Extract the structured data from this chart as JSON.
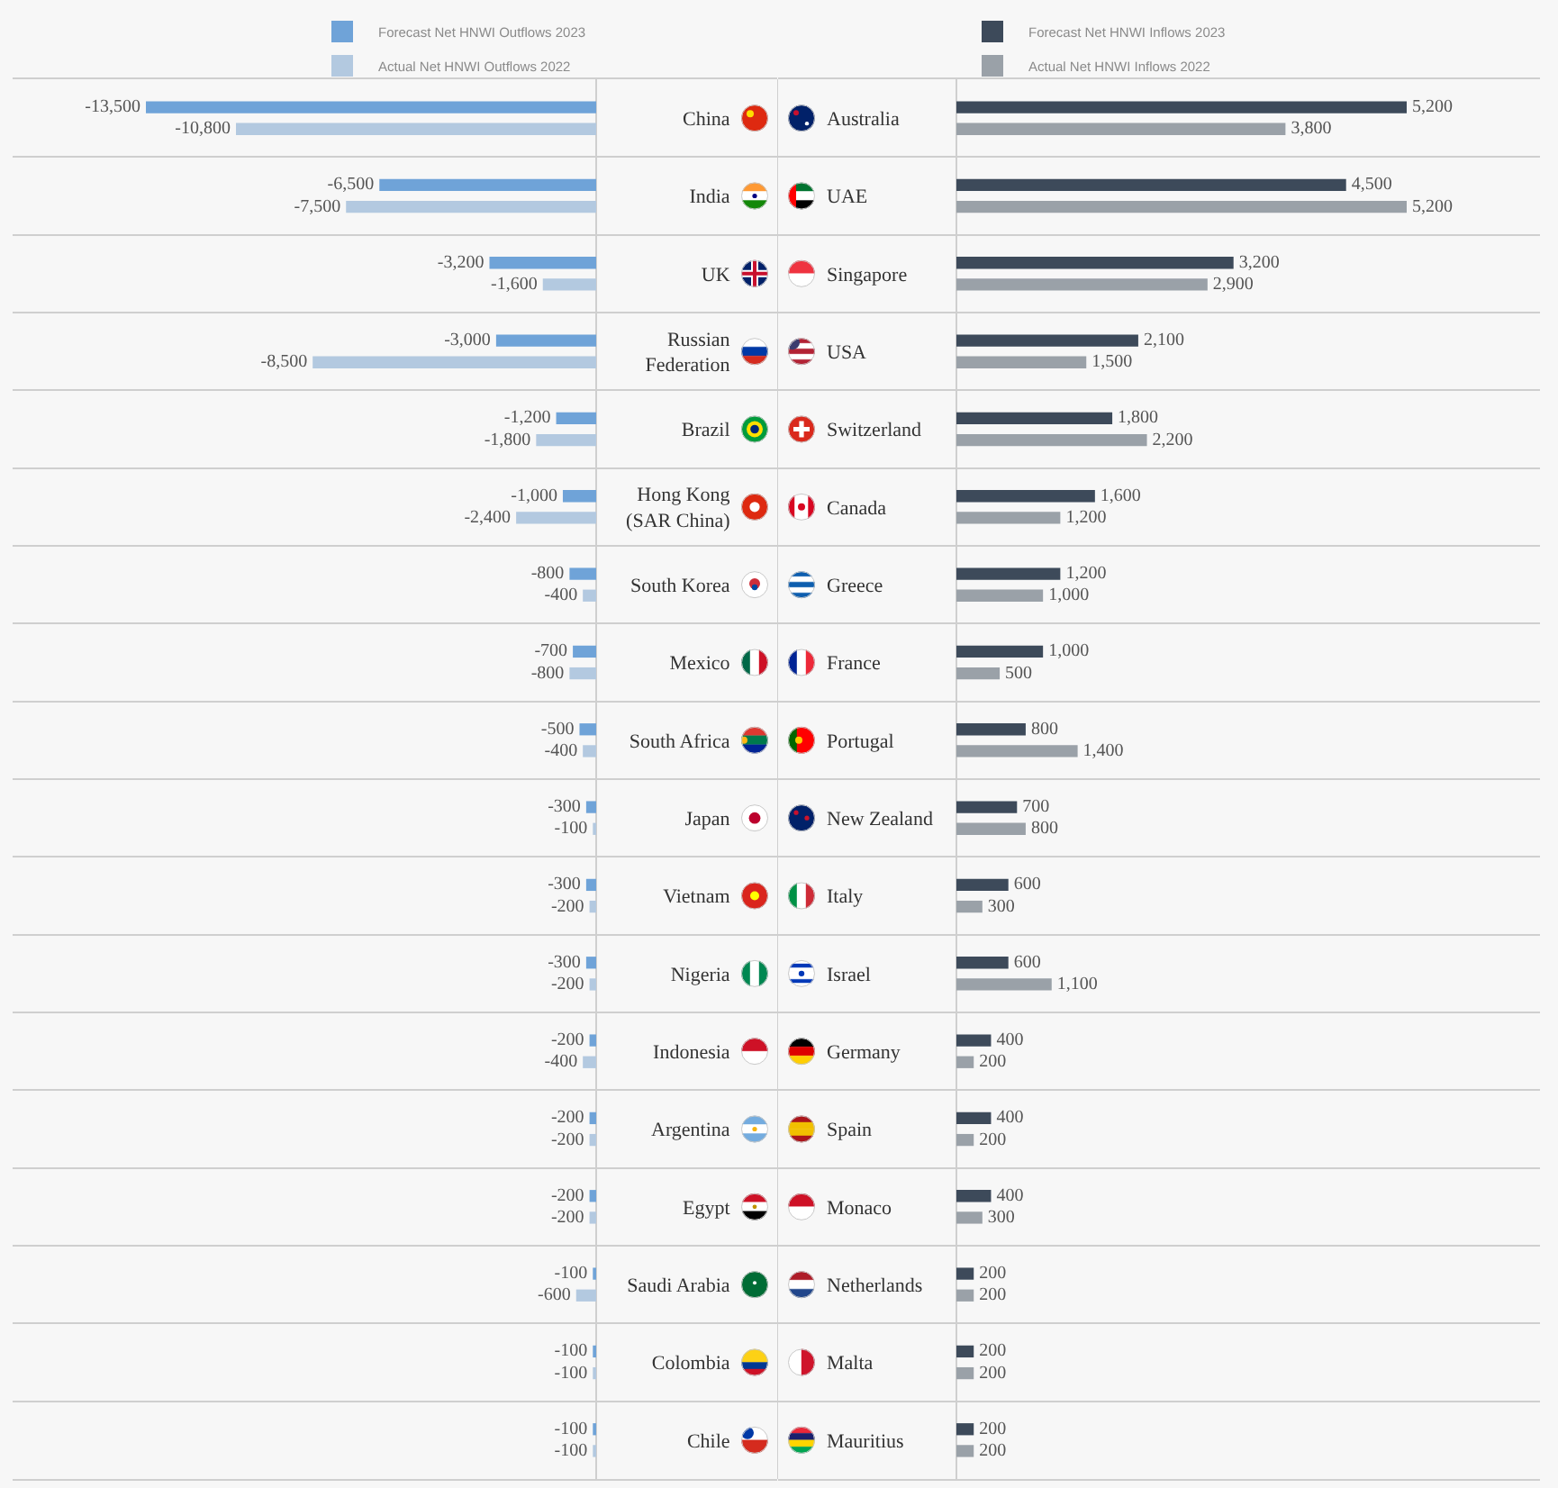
{
  "chart_data": [
    {
      "type": "bar",
      "orientation": "horizontal",
      "legend": "top right",
      "tick_labels": "y",
      "grid": "y",
      "categories": [
        "China",
        "India",
        "UK",
        "Russian Federation",
        "Brazil",
        "Hong Kong (SAR China)",
        "South Korea",
        "Mexico",
        "South Africa",
        "Japan",
        "Vietnam",
        "Nigeria",
        "Indonesia",
        "Argentina",
        "Egypt",
        "Saudi Arabia",
        "Colombia",
        "Chile"
      ],
      "series": [
        {
          "name": "Forecast Net HNWI Outflows 2023",
          "color": "#6fa3d8",
          "values": [
            -13500,
            -6500,
            -3200,
            -3000,
            -1200,
            -1000,
            -800,
            -700,
            -500,
            -300,
            -300,
            -300,
            -200,
            -200,
            -200,
            -100,
            -100,
            -100
          ],
          "value_labels": [
            "-13,500",
            "-6,500",
            "-3,200",
            "-3,000",
            "-1,200",
            "-1,000",
            "-800",
            "-700",
            "-500",
            "-300",
            "-300",
            "-300",
            "-200",
            "-200",
            "-200",
            "-100",
            "-100",
            "-100"
          ]
        },
        {
          "name": "Actual Net HNWI Outflows 2022",
          "color": "#b3c9e0",
          "values": [
            -10800,
            -7500,
            -1600,
            -8500,
            -1800,
            -2400,
            -400,
            -800,
            -400,
            -100,
            -200,
            -200,
            -400,
            -200,
            -200,
            -600,
            -100,
            -100
          ],
          "value_labels": [
            "-10,800",
            "-7,500",
            "-1,600",
            "-8,500",
            "-1,800",
            "-2,400",
            "-400",
            "-800",
            "-400",
            "-100",
            "-200",
            "-200",
            "-400",
            "-200",
            "-200",
            "-600",
            "-100",
            "-100"
          ]
        }
      ]
    },
    {
      "type": "bar",
      "orientation": "horizontal",
      "legend": "top left",
      "tick_labels": "y",
      "grid": "y",
      "categories": [
        "Australia",
        "UAE",
        "Singapore",
        "USA",
        "Switzerland",
        "Canada",
        "Greece",
        "France",
        "Portugal",
        "New Zealand",
        "Italy",
        "Israel",
        "Germany",
        "Spain",
        "Monaco",
        "Netherlands",
        "Malta",
        "Mauritius"
      ],
      "series": [
        {
          "name": "Forecast Net HNWI Inflows 2023",
          "color": "#3d4a5a",
          "values": [
            5200,
            4500,
            3200,
            2100,
            1800,
            1600,
            1200,
            1000,
            800,
            700,
            600,
            600,
            400,
            400,
            400,
            200,
            200,
            200
          ],
          "value_labels": [
            "5,200",
            "4,500",
            "3,200",
            "2,100",
            "1,800",
            "1,600",
            "1,200",
            "1,000",
            "800",
            "700",
            "600",
            "600",
            "400",
            "400",
            "400",
            "200",
            "200",
            "200"
          ]
        },
        {
          "name": "Actual Net HNWI Inflows 2022",
          "color": "#9aa1a8",
          "values": [
            3800,
            5200,
            2900,
            1500,
            2200,
            1200,
            1000,
            500,
            1400,
            800,
            300,
            1100,
            200,
            200,
            300,
            200,
            200,
            200
          ],
          "value_labels": [
            "3,800",
            "5,200",
            "2,900",
            "1,500",
            "2,200",
            "1,200",
            "1,000",
            "500",
            "1,400",
            "800",
            "300",
            "1,100",
            "200",
            "200",
            "300",
            "200",
            "200",
            "200"
          ]
        }
      ]
    }
  ]
}
